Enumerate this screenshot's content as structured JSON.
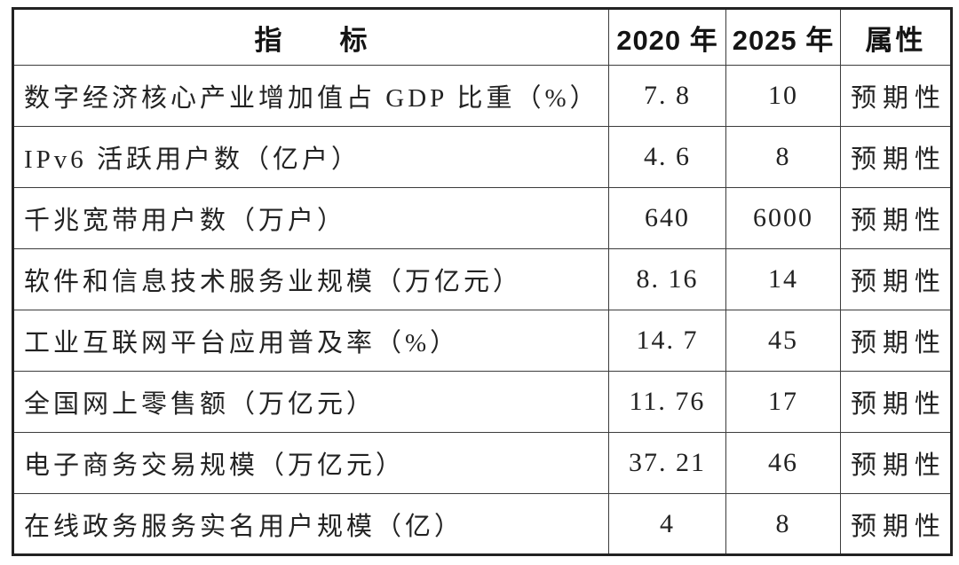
{
  "colors": {
    "background": "#ffffff",
    "text": "#222222",
    "border_outer": "#222222",
    "border_inner": "#3c3c3c"
  },
  "table": {
    "headers": {
      "indicator": "指　　标",
      "y2020": "2020 年",
      "y2025": "2025 年",
      "attribute": "属性"
    },
    "rows": [
      {
        "indicator": "数字经济核心产业增加值占 GDP 比重（%）",
        "y2020": "7. 8",
        "y2025": "10",
        "attribute": "预期性"
      },
      {
        "indicator": "IPv6 活跃用户数（亿户）",
        "y2020": "4. 6",
        "y2025": "8",
        "attribute": "预期性"
      },
      {
        "indicator": "千兆宽带用户数（万户）",
        "y2020": "640",
        "y2025": "6000",
        "attribute": "预期性"
      },
      {
        "indicator": "软件和信息技术服务业规模（万亿元）",
        "y2020": "8. 16",
        "y2025": "14",
        "attribute": "预期性"
      },
      {
        "indicator": "工业互联网平台应用普及率（%）",
        "y2020": "14. 7",
        "y2025": "45",
        "attribute": "预期性"
      },
      {
        "indicator": "全国网上零售额（万亿元）",
        "y2020": "11. 76",
        "y2025": "17",
        "attribute": "预期性"
      },
      {
        "indicator": "电子商务交易规模（万亿元）",
        "y2020": "37. 21",
        "y2025": "46",
        "attribute": "预期性"
      },
      {
        "indicator": "在线政务服务实名用户规模（亿）",
        "y2020": "4",
        "y2025": "8",
        "attribute": "预期性"
      }
    ]
  }
}
